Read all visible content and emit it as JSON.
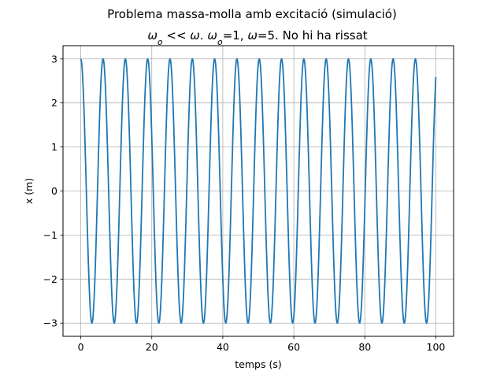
{
  "chart_data": {
    "type": "line",
    "suptitle": "Problema massa-molla amb excitació (simulació)",
    "title_parts": [
      {
        "text": "ω",
        "italic": true
      },
      {
        "text": "o",
        "italic": true,
        "sub": true
      },
      {
        "text": " << ",
        "italic": false
      },
      {
        "text": "ω",
        "italic": true
      },
      {
        "text": ". ",
        "italic": false
      },
      {
        "text": "ω",
        "italic": true
      },
      {
        "text": "o",
        "italic": true,
        "sub": true
      },
      {
        "text": "=1, ",
        "italic": false
      },
      {
        "text": "ω",
        "italic": true
      },
      {
        "text": "=5. No hi ha rissat",
        "italic": false
      }
    ],
    "xlabel": "temps (s)",
    "ylabel": "x (m)",
    "xlim": [
      -5,
      105
    ],
    "ylim": [
      -3.3,
      3.3
    ],
    "xticks": [
      0,
      20,
      40,
      60,
      80,
      100
    ],
    "xtick_labels": [
      "0",
      "20",
      "40",
      "60",
      "80",
      "100"
    ],
    "yticks": [
      -3,
      -2,
      -1,
      0,
      1,
      2,
      3
    ],
    "ytick_labels": [
      "−3",
      "−2",
      "−1",
      "0",
      "1",
      "2",
      "3"
    ],
    "grid": true,
    "series": [
      {
        "color": "#1f77b4",
        "function": "x(t) = 3·cos(t)",
        "amplitude": 3,
        "angular_frequency": 1,
        "t_range": [
          0,
          100
        ]
      }
    ]
  }
}
